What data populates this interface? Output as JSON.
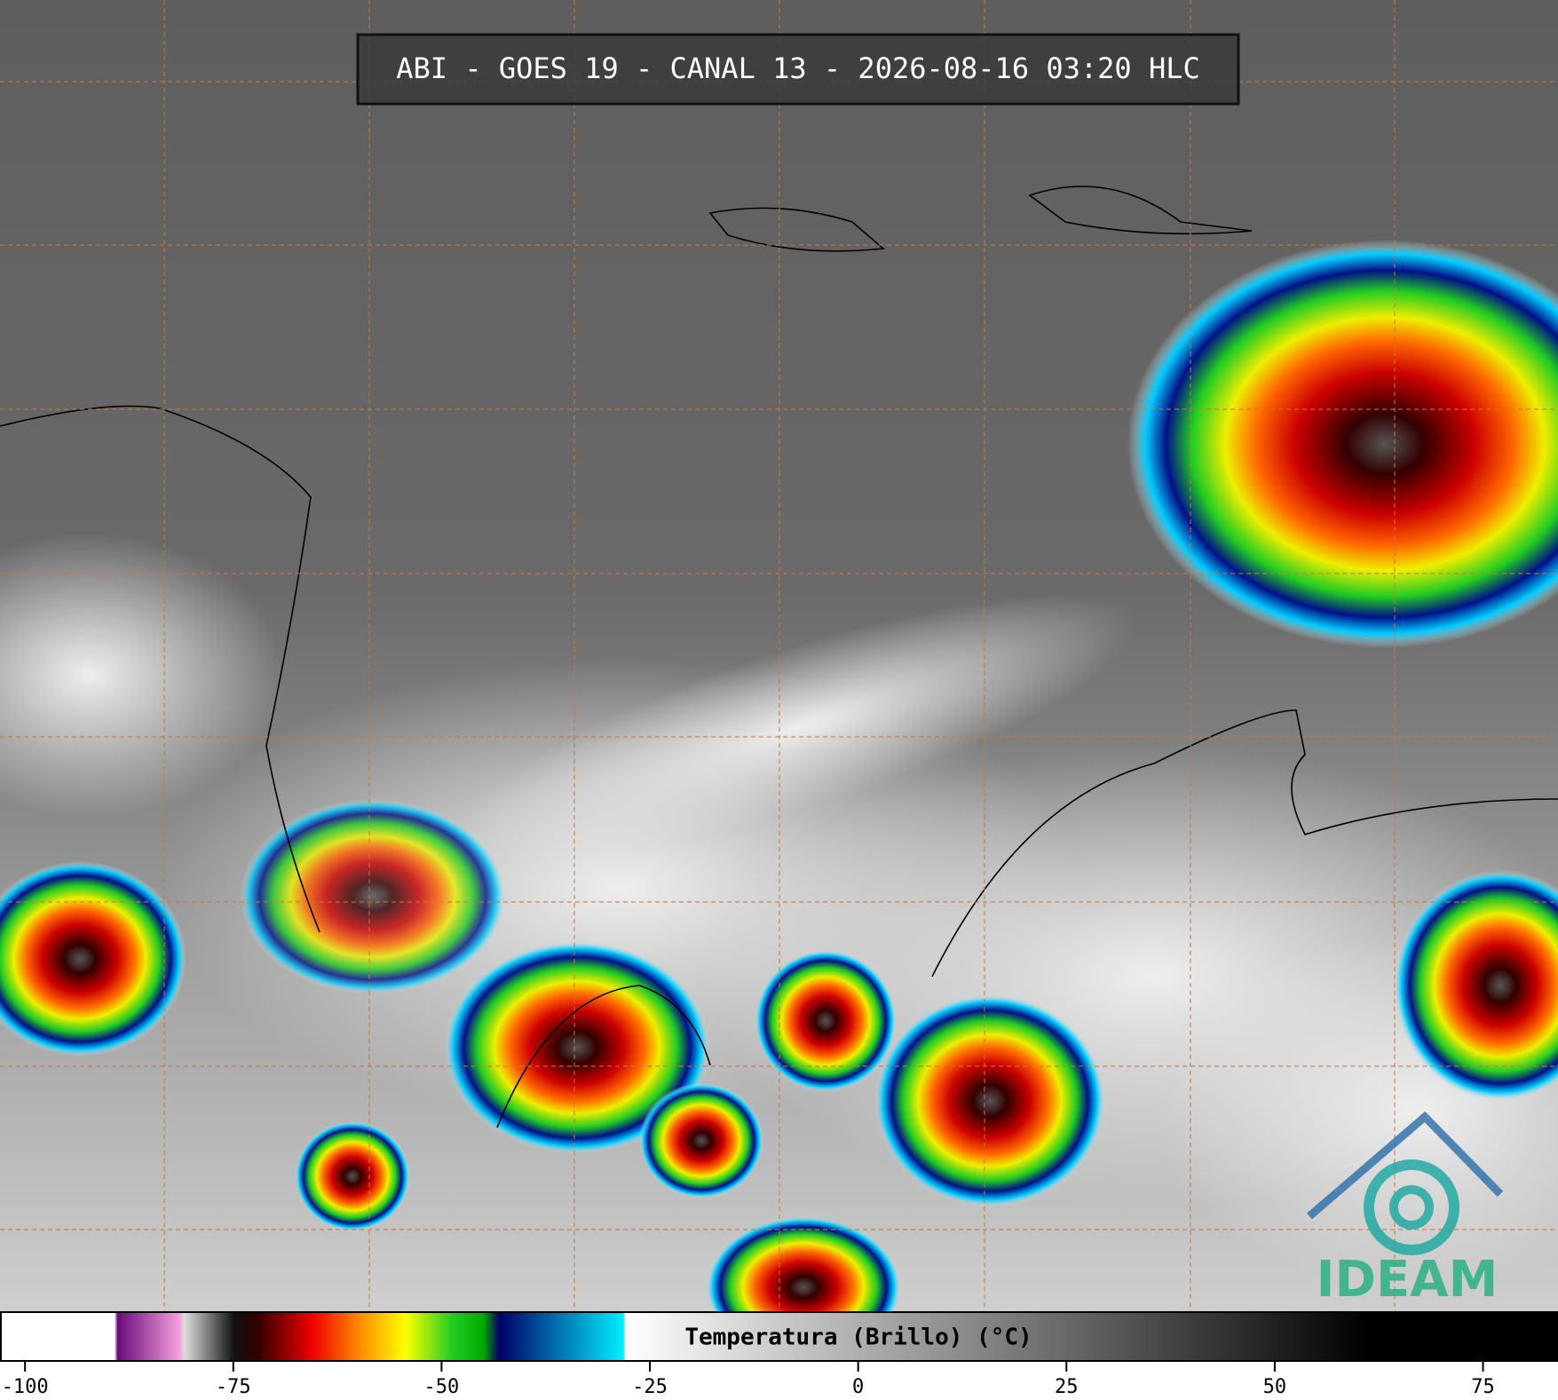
{
  "title": "ABI - GOES 19 - CANAL 13 - 2026-08-16 03:20 HLC",
  "logo": "IDEAM",
  "colorbar": {
    "label": "Temperatura (Brillo) (°C)",
    "range": [
      -103,
      84
    ],
    "ticks": [
      -100,
      -75,
      -50,
      -25,
      0,
      25,
      50,
      75
    ]
  }
}
